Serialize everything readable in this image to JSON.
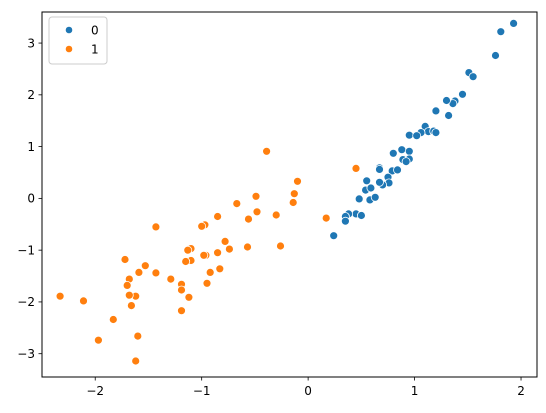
{
  "chart_data": {
    "type": "scatter",
    "title": "",
    "xlabel": "",
    "ylabel": "",
    "xlim": [
      -2.5,
      2.15
    ],
    "ylim": [
      -3.45,
      3.6
    ],
    "xticks": [
      -2,
      -1,
      0,
      1,
      2
    ],
    "yticks": [
      -3,
      -2,
      -1,
      0,
      1,
      2,
      3
    ],
    "xtick_labels": [
      "−2",
      "−1",
      "0",
      "1",
      "2"
    ],
    "ytick_labels": [
      "−3",
      "−2",
      "−1",
      "0",
      "1",
      "2",
      "3"
    ],
    "grid": false,
    "legend": {
      "placement": "top-left",
      "entries": [
        "0",
        "1"
      ]
    },
    "series": [
      {
        "name": "0",
        "color": "#1f77b4",
        "points": [
          [
            1.93,
            3.38
          ],
          [
            1.81,
            3.22
          ],
          [
            1.76,
            2.76
          ],
          [
            1.51,
            2.43
          ],
          [
            1.55,
            2.35
          ],
          [
            1.45,
            2.01
          ],
          [
            1.38,
            1.88
          ],
          [
            1.36,
            1.83
          ],
          [
            1.3,
            1.89
          ],
          [
            1.32,
            1.6
          ],
          [
            1.2,
            1.69
          ],
          [
            1.1,
            1.39
          ],
          [
            1.13,
            1.29
          ],
          [
            1.18,
            1.3
          ],
          [
            1.2,
            1.27
          ],
          [
            1.06,
            1.27
          ],
          [
            0.95,
            1.22
          ],
          [
            1.02,
            1.21
          ],
          [
            0.88,
            0.94
          ],
          [
            0.95,
            0.91
          ],
          [
            0.89,
            0.75
          ],
          [
            0.95,
            0.76
          ],
          [
            0.92,
            0.71
          ],
          [
            0.8,
            0.87
          ],
          [
            0.79,
            0.53
          ],
          [
            0.84,
            0.55
          ],
          [
            0.75,
            0.41
          ],
          [
            0.76,
            0.3
          ],
          [
            0.7,
            0.26
          ],
          [
            0.67,
            0.31
          ],
          [
            0.67,
            0.59
          ],
          [
            0.67,
            0.56
          ],
          [
            0.55,
            0.34
          ],
          [
            0.54,
            0.16
          ],
          [
            0.59,
            0.2
          ],
          [
            0.58,
            -0.03
          ],
          [
            0.63,
            0.02
          ],
          [
            0.48,
            -0.01
          ],
          [
            0.45,
            -0.3
          ],
          [
            0.5,
            -0.33
          ],
          [
            0.38,
            -0.3
          ],
          [
            0.35,
            -0.35
          ],
          [
            0.35,
            -0.44
          ],
          [
            0.24,
            -0.72
          ]
        ]
      },
      {
        "name": "1",
        "color": "#ff7f0e",
        "points": [
          [
            0.45,
            0.58
          ],
          [
            0.17,
            -0.38
          ],
          [
            -0.1,
            0.33
          ],
          [
            -0.13,
            0.09
          ],
          [
            -0.14,
            -0.08
          ],
          [
            -0.3,
            -0.32
          ],
          [
            -0.26,
            -0.92
          ],
          [
            -0.39,
            0.91
          ],
          [
            -0.49,
            0.04
          ],
          [
            -0.48,
            -0.26
          ],
          [
            -0.56,
            -0.4
          ],
          [
            -0.57,
            -0.94
          ],
          [
            -0.67,
            -0.1
          ],
          [
            -0.74,
            -0.98
          ],
          [
            -0.78,
            -0.83
          ],
          [
            -0.85,
            -0.35
          ],
          [
            -0.85,
            -1.05
          ],
          [
            -0.83,
            -1.36
          ],
          [
            -0.92,
            -1.43
          ],
          [
            -0.96,
            -1.1
          ],
          [
            -0.98,
            -1.1
          ],
          [
            -0.97,
            -0.51
          ],
          [
            -1.0,
            -0.54
          ],
          [
            -0.95,
            -1.64
          ],
          [
            -1.1,
            -0.97
          ],
          [
            -1.13,
            -1.0
          ],
          [
            -1.1,
            -1.2
          ],
          [
            -1.12,
            -1.91
          ],
          [
            -1.15,
            -1.22
          ],
          [
            -1.19,
            -1.66
          ],
          [
            -1.19,
            -1.77
          ],
          [
            -1.19,
            -2.17
          ],
          [
            -1.29,
            -1.56
          ],
          [
            -1.43,
            -0.55
          ],
          [
            -1.43,
            -1.44
          ],
          [
            -1.53,
            -1.3
          ],
          [
            -1.59,
            -1.43
          ],
          [
            -1.62,
            -1.89
          ],
          [
            -1.6,
            -2.66
          ],
          [
            -1.62,
            -3.14
          ],
          [
            -1.68,
            -1.56
          ],
          [
            -1.7,
            -1.68
          ],
          [
            -1.72,
            -1.18
          ],
          [
            -1.68,
            -1.87
          ],
          [
            -1.66,
            -2.07
          ],
          [
            -1.83,
            -2.34
          ],
          [
            -1.97,
            -2.74
          ],
          [
            -2.11,
            -1.98
          ],
          [
            -2.33,
            -1.89
          ]
        ]
      }
    ]
  }
}
